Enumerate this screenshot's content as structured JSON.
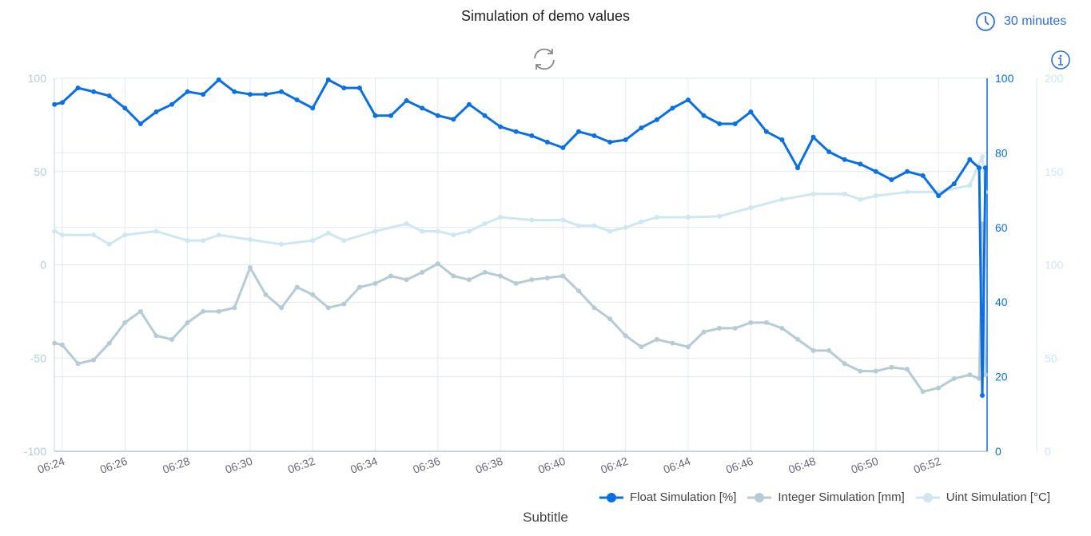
{
  "header": {
    "title": "Simulation of demo values",
    "time_range": "30 minutes"
  },
  "subtitle": "Subtitle",
  "colors": {
    "float": "#0a6fe0",
    "integer": "#b6cbd4",
    "uint": "#cfe7f0",
    "accent": "#2f6fde"
  },
  "chart_data": {
    "type": "line",
    "title": "Simulation of demo values",
    "subtitle": "Subtitle",
    "x_unit": "minutes after 06:00",
    "xlim": [
      23.75,
      53.6
    ],
    "x_ticks": [
      "06:24",
      "06:26",
      "06:28",
      "06:30",
      "06:32",
      "06:34",
      "06:36",
      "06:38",
      "06:40",
      "06:42",
      "06:44",
      "06:46",
      "06:48",
      "06:50",
      "06:52"
    ],
    "x_tick_values": [
      24,
      26,
      28,
      30,
      32,
      34,
      36,
      38,
      40,
      42,
      44,
      46,
      48,
      50,
      52
    ],
    "axes": [
      {
        "id": "left",
        "range": [
          -100,
          100
        ],
        "ticks": [
          "-100",
          "-50",
          "0",
          "50",
          "100"
        ],
        "tick_values": [
          -100,
          -50,
          0,
          50,
          100
        ]
      },
      {
        "id": "right1",
        "range": [
          0,
          100
        ],
        "ticks": [
          "0",
          "20",
          "40",
          "60",
          "80",
          "100"
        ],
        "tick_values": [
          0,
          20,
          40,
          60,
          80,
          100
        ]
      },
      {
        "id": "right2",
        "range": [
          0,
          200
        ],
        "ticks": [
          "0",
          "50",
          "100",
          "150",
          "200"
        ],
        "tick_values": [
          0,
          50,
          100,
          150,
          200
        ]
      }
    ],
    "legend_position": "bottom-right",
    "series": [
      {
        "name": "Float Simulation [%]",
        "axis": "right1",
        "color": "#0a6fe0",
        "x": [
          23.75,
          24,
          24.5,
          25,
          25.5,
          26,
          26.5,
          27,
          27.5,
          28,
          28.5,
          29,
          29.5,
          30,
          30.5,
          31,
          31.5,
          32,
          32.5,
          33,
          33.5,
          34,
          34.5,
          35,
          35.5,
          36,
          36.5,
          37,
          37.5,
          38,
          38.5,
          39,
          39.5,
          40,
          40.5,
          41,
          41.5,
          42,
          42.5,
          43,
          43.5,
          44,
          44.5,
          45,
          45.5,
          46,
          46.5,
          47,
          47.5,
          48,
          48.5,
          49,
          49.5,
          50,
          50.5,
          51,
          51.5,
          52,
          52.5,
          53,
          53.3,
          53.4,
          53.5
        ],
        "y": [
          93,
          93.5,
          97.4,
          96.4,
          95.3,
          92,
          87.8,
          91,
          93,
          96.4,
          95.7,
          99.6,
          96.4,
          95.7,
          95.7,
          96.4,
          94.2,
          92,
          99.6,
          97.4,
          97.4,
          90,
          90,
          94,
          92,
          90,
          89,
          93,
          90,
          87,
          85.7,
          84.6,
          82.9,
          81.4,
          85.7,
          84.6,
          82.9,
          83.5,
          86.7,
          88.9,
          92,
          94.2,
          90,
          87.8,
          87.8,
          91,
          85.7,
          83.5,
          76,
          84.2,
          80.3,
          78.2,
          77,
          75,
          72.8,
          75,
          73.9,
          68.5,
          71.7,
          78.2,
          76,
          15,
          76
        ]
      },
      {
        "name": "Integer Simulation [mm]",
        "axis": "left",
        "color": "#b6cbd4",
        "x": [
          23.75,
          24,
          24.5,
          25,
          25.5,
          26,
          26.5,
          27,
          27.5,
          28,
          28.5,
          29,
          29.5,
          30,
          30.5,
          31,
          31.5,
          32,
          32.5,
          33,
          33.5,
          34,
          34.5,
          35,
          35.5,
          36,
          36.5,
          37,
          37.5,
          38,
          38.5,
          39,
          39.5,
          40,
          40.5,
          41,
          41.5,
          42,
          42.5,
          43,
          43.5,
          44,
          44.5,
          45,
          45.5,
          46,
          46.5,
          47,
          47.5,
          48,
          48.5,
          49,
          49.5,
          50,
          50.5,
          51,
          51.5,
          52,
          52.5,
          53,
          53.3,
          53.4,
          53.5
        ],
        "y": [
          -42,
          -43,
          -53,
          -51,
          -42,
          -31,
          -25,
          -38,
          -40,
          -31,
          -25,
          -25,
          -23,
          -1.5,
          -16,
          -23,
          -12,
          -16,
          -23,
          -21,
          -12,
          -10,
          -6,
          -8,
          -4,
          0.6,
          -6,
          -8,
          -4,
          -6,
          -10,
          -8,
          -7,
          -6,
          -14,
          -23,
          -29,
          -38,
          -44,
          -40,
          -42,
          -44,
          -36,
          -34,
          -34,
          -31,
          -31,
          -34,
          -40,
          -46,
          -46,
          -53,
          -57,
          -57,
          -55,
          -56,
          -68,
          -66,
          -61,
          -59,
          -61,
          22,
          -59
        ]
      },
      {
        "name": "Uint Simulation [°C]",
        "axis": "right2",
        "color": "#cfe7f0",
        "x": [
          23.75,
          24,
          25,
          25.5,
          26,
          27,
          28,
          28.5,
          29,
          30,
          31,
          32,
          32.5,
          33,
          34,
          35,
          35.5,
          36,
          36.5,
          37,
          37.5,
          38,
          39,
          40,
          40.5,
          41,
          41.5,
          42,
          42.5,
          43,
          44,
          45,
          46,
          47,
          48,
          49,
          49.5,
          50,
          51,
          52,
          53,
          53.4,
          53.5
        ],
        "y": [
          118,
          116,
          116,
          111,
          116,
          118,
          113,
          113,
          116,
          113.5,
          111,
          113,
          117,
          113,
          118,
          122,
          118,
          118,
          116,
          118,
          122,
          125.5,
          124,
          124,
          121,
          121,
          118,
          120,
          123,
          125.5,
          125.5,
          126,
          130.6,
          135,
          138,
          138,
          135,
          137,
          139,
          139,
          142.6,
          158,
          139
        ]
      }
    ]
  },
  "legend": [
    "Float Simulation [%]",
    "Integer Simulation [mm]",
    "Uint Simulation [°C]"
  ]
}
